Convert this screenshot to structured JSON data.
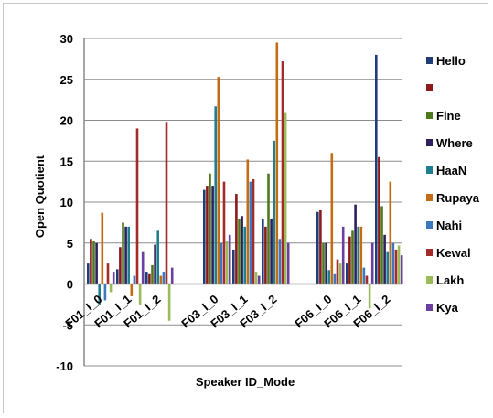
{
  "chart_data": {
    "type": "bar",
    "title": "",
    "xlabel": "Speaker ID_Mode",
    "ylabel": "Open Quotient",
    "ylim": [
      -10,
      30
    ],
    "yticks": [
      -10,
      -5,
      0,
      5,
      10,
      15,
      20,
      25,
      30
    ],
    "grid": true,
    "legend_position": "right",
    "categories": [
      "F01_I_0",
      "F01_I_1",
      "F01_I_2",
      "F03_I_0",
      "F03_I_1",
      "F03_I_2",
      "F06_I_0",
      "F06_I_1",
      "F06_I_2"
    ],
    "series": [
      {
        "name": "Hello",
        "color": "#1f3e78",
        "values": [
          2.5,
          1.8,
          1.5,
          11.5,
          4.2,
          8.0,
          8.8,
          2.5,
          28.0
        ]
      },
      {
        "name": "",
        "color": "#8b1a1a",
        "values": [
          5.5,
          4.5,
          1.2,
          12.0,
          11.0,
          7.0,
          9.0,
          5.8,
          15.5
        ]
      },
      {
        "name": "Fine",
        "color": "#4e7a1e",
        "values": [
          5.2,
          7.5,
          2.3,
          13.5,
          8.0,
          13.5,
          5.0,
          6.5,
          9.5
        ]
      },
      {
        "name": "Where",
        "color": "#2e1f5e",
        "values": [
          5.0,
          7.0,
          4.8,
          12.0,
          8.3,
          8.0,
          5.0,
          9.7,
          6.0
        ]
      },
      {
        "name": "HaaN",
        "color": "#1e7f8f",
        "values": [
          -2.5,
          7.0,
          6.5,
          21.7,
          7.0,
          17.5,
          1.7,
          7.0,
          4.0
        ]
      },
      {
        "name": "Rupaya",
        "color": "#c46c14",
        "values": [
          8.7,
          -1.5,
          1.0,
          25.3,
          15.2,
          29.5,
          16.0,
          7.0,
          12.5
        ]
      },
      {
        "name": "Nahi",
        "color": "#3a78c0",
        "values": [
          -2.0,
          1.0,
          1.5,
          5.0,
          12.5,
          5.5,
          1.2,
          2.0,
          5.0
        ]
      },
      {
        "name": "Kewal",
        "color": "#a52a2a",
        "values": [
          2.5,
          19.0,
          19.8,
          12.5,
          12.8,
          27.2,
          3.0,
          1.0,
          4.2
        ]
      },
      {
        "name": "Lakh",
        "color": "#9bbb59",
        "values": [
          -1.0,
          -2.5,
          -4.5,
          5.2,
          1.5,
          21.0,
          2.5,
          -3.0,
          4.7
        ]
      },
      {
        "name": "Kya",
        "color": "#6b3fa0",
        "values": [
          1.5,
          4.0,
          2.0,
          6.0,
          1.0,
          5.0,
          7.0,
          5.0,
          3.5
        ]
      }
    ]
  }
}
